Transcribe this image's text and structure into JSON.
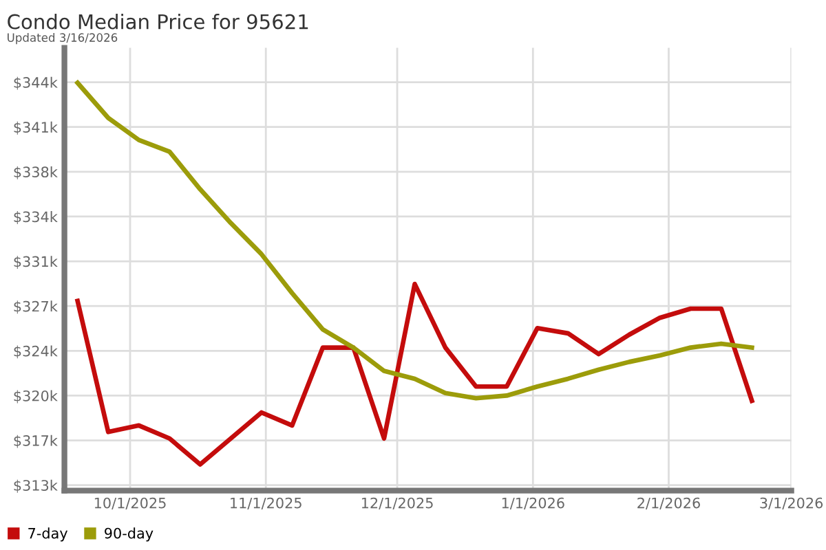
{
  "chart_data": {
    "type": "line",
    "title": "Condo Median Price for 95621",
    "subtitle": "Updated 3/16/2026",
    "x": [
      "2025-09-19",
      "2025-09-26",
      "2025-10-03",
      "2025-10-10",
      "2025-10-17",
      "2025-10-24",
      "2025-10-31",
      "2025-11-07",
      "2025-11-14",
      "2025-11-21",
      "2025-11-28",
      "2025-12-05",
      "2025-12-12",
      "2025-12-19",
      "2025-12-26",
      "2026-01-02",
      "2026-01-09",
      "2026-01-16",
      "2026-01-23",
      "2026-01-30",
      "2026-02-06",
      "2026-02-13",
      "2026-02-20"
    ],
    "series": [
      {
        "name": "7-day",
        "color": "#c40c0c",
        "values": [
          327600,
          317500,
          318000,
          317000,
          315000,
          317000,
          319000,
          318000,
          324000,
          324000,
          317000,
          328900,
          324000,
          321000,
          321000,
          325500,
          325100,
          323500,
          325000,
          326300,
          327000,
          327000,
          319900
        ]
      },
      {
        "name": "90-day",
        "color": "#9c9c0a",
        "values": [
          344400,
          341700,
          340000,
          339100,
          336200,
          333600,
          331200,
          328200,
          325400,
          324000,
          322200,
          321600,
          320500,
          320100,
          320300,
          321000,
          321600,
          322300,
          322900,
          323400,
          324000,
          324300,
          324000
        ]
      }
    ],
    "xlim": [
      "2025-09-16",
      "2026-03-01"
    ],
    "xticks": [
      {
        "value": "2025-10-01",
        "label": "10/1/2025"
      },
      {
        "value": "2025-11-01",
        "label": "11/1/2025"
      },
      {
        "value": "2025-12-01",
        "label": "12/1/2025"
      },
      {
        "value": "2026-01-01",
        "label": "1/1/2026"
      },
      {
        "value": "2026-02-01",
        "label": "2/1/2026"
      },
      {
        "value": "2026-03-01",
        "label": "3/1/2026"
      }
    ],
    "ylim": [
      312980,
      347100
    ],
    "yticks": [
      {
        "value": 313400,
        "label": "$313k"
      },
      {
        "value": 316850,
        "label": "$317k"
      },
      {
        "value": 320300,
        "label": "$320k"
      },
      {
        "value": 323750,
        "label": "$324k"
      },
      {
        "value": 327200,
        "label": "$327k"
      },
      {
        "value": 330650,
        "label": "$331k"
      },
      {
        "value": 334100,
        "label": "$334k"
      },
      {
        "value": 337550,
        "label": "$338k"
      },
      {
        "value": 341000,
        "label": "$341k"
      },
      {
        "value": 344450,
        "label": "$344k"
      }
    ],
    "grid": true,
    "legend": "bottom left",
    "line_style": "solid",
    "marker": "none"
  }
}
